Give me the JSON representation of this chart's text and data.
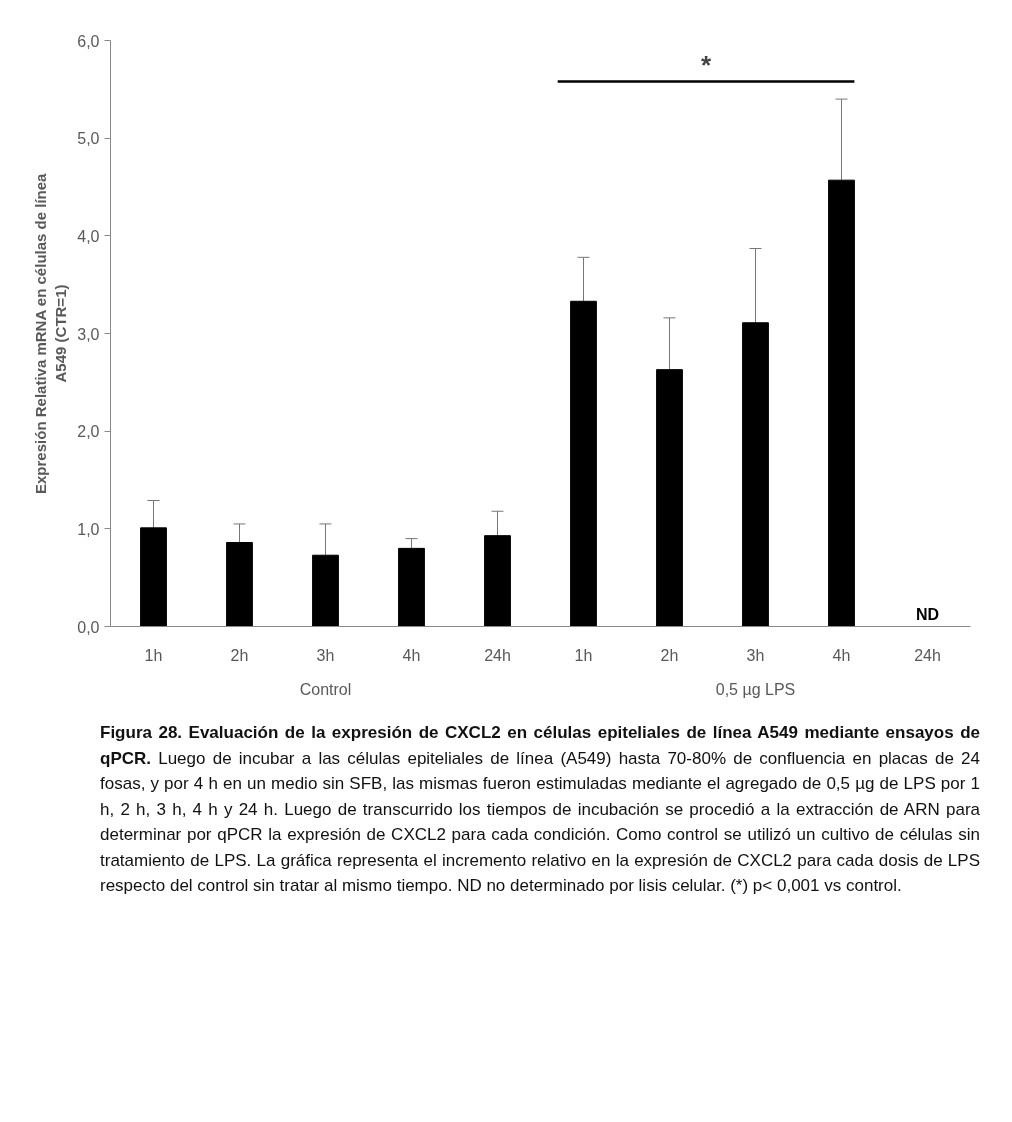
{
  "chart_data": {
    "type": "bar",
    "categories": [
      "1h",
      "2h",
      "3h",
      "4h",
      "24h",
      "1h",
      "2h",
      "3h",
      "4h",
      "24h"
    ],
    "values": [
      1.01,
      0.86,
      0.73,
      0.8,
      0.93,
      3.33,
      2.63,
      3.11,
      4.57,
      null
    ],
    "errors": [
      0.28,
      0.19,
      0.32,
      0.1,
      0.25,
      0.45,
      0.53,
      0.76,
      0.83,
      null
    ],
    "value_labels": [
      null,
      null,
      null,
      null,
      null,
      null,
      null,
      null,
      null,
      "ND"
    ],
    "color": "#000000",
    "ylabel": "Expresión Relativa mRNA en células de línea A549 (CTR=1)",
    "ylim": [
      0,
      6
    ],
    "yticks": [
      {
        "value": 0,
        "label": "0,0"
      },
      {
        "value": 1,
        "label": "1,0"
      },
      {
        "value": 2,
        "label": "2,0"
      },
      {
        "value": 3,
        "label": "3,0"
      },
      {
        "value": 4,
        "label": "4,0"
      },
      {
        "value": 5,
        "label": "5,0"
      },
      {
        "value": 6,
        "label": "6,0"
      }
    ],
    "grid": false,
    "annotations": [
      "*",
      "Control",
      "0,5 µg LPS",
      "Figura 28. Evaluación de la expresión de CXCL2 en células epiteliales de línea A549 mediante ensayos de qPCR.",
      "Luego de incubar a las células epiteliales de línea (A549) hasta 70-80% de confluencia en placas de 24 fosas, y por 4 h en un medio sin SFB, las mismas fueron estimuladas mediante el agregado de 0,5 µg de LPS por 1 h, 2 h, 3 h, 4 h y 24 h. Luego de transcurrido los tiempos de incubación se procedió a la extracción de ARN para determinar por qPCR la expresión de CXCL2 para cada condición. Como control se utilizó un cultivo de células sin tratamiento de LPS. La gráfica representa el incremento relativo en la expresión de CXCL2 para cada dosis de LPS respecto del control sin tratar al mismo tiempo. ND no determinado por lisis celular. (*) p< 0,001 vs control."
    ]
  }
}
